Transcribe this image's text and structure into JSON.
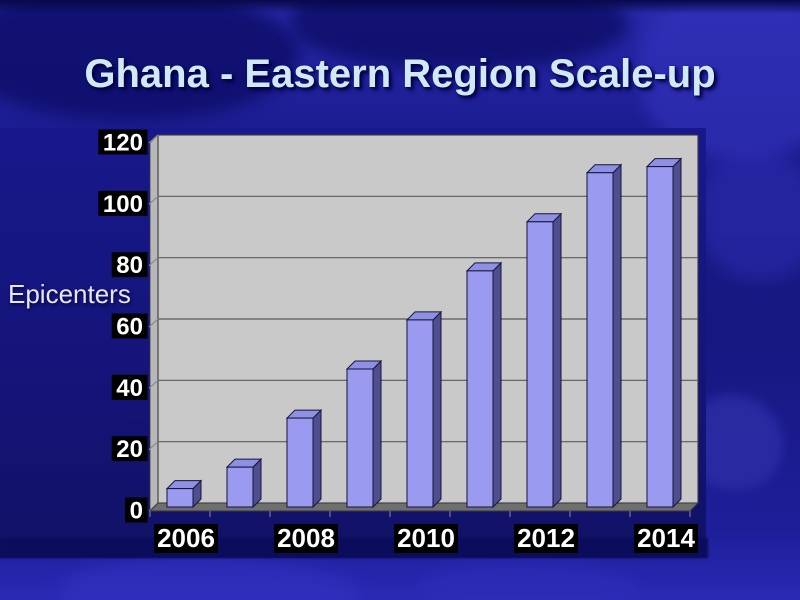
{
  "title": "Ghana - Eastern Region Scale-up",
  "background": {
    "texture": "blue-world-map",
    "base_color": "#17177f",
    "chart_panel_color": "#141478"
  },
  "chart_data": {
    "type": "bar",
    "style": "3d-column",
    "title": "",
    "xlabel": "",
    "ylabel": "Epicenters",
    "categories": [
      "2006",
      "2007",
      "2008",
      "2009",
      "2010",
      "2011",
      "2012",
      "2013",
      "2014"
    ],
    "values": [
      6,
      13,
      29,
      45,
      61,
      77,
      93,
      109,
      111
    ],
    "ylim": [
      0,
      120
    ],
    "yticks": [
      0,
      20,
      40,
      60,
      80,
      100,
      120
    ],
    "x_axis_labels_shown": [
      "2006",
      "2008",
      "2010",
      "2012",
      "2014"
    ],
    "grid": true,
    "legend": false,
    "colors": {
      "bar_front": "#9a9af0",
      "bar_top": "#8f8fe4",
      "bar_side": "#4f4f8f",
      "bar_outline": "#14143c",
      "wall": "#c9c9c9",
      "side_wall": "#b8b8b8",
      "floor": "#6f6f6f",
      "gridline": "#5a5a5a",
      "axis_label_bg": "#000000",
      "axis_label_fg": "#ffffff"
    }
  }
}
